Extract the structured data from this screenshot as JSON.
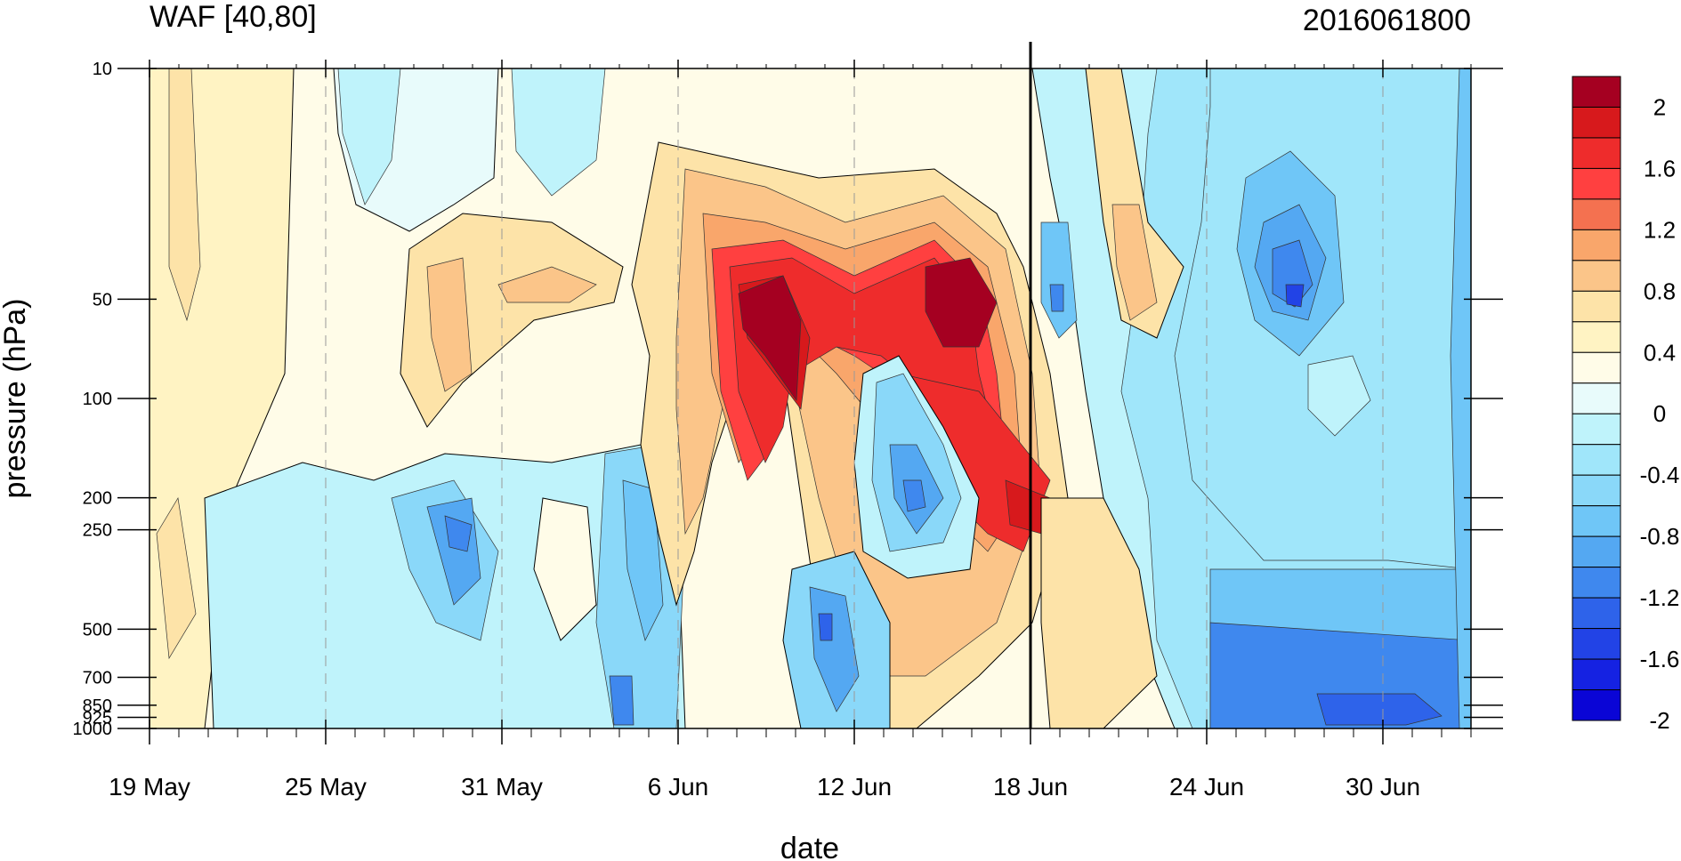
{
  "chart_data": {
    "type": "heatmap",
    "title": "WAF [40,80]",
    "timestamp": "2016061800",
    "xlabel": "date",
    "ylabel": "pressure (hPa)",
    "x_ticks": [
      "19 May",
      "25 May",
      "31 May",
      "6 Jun",
      "12 Jun",
      "18 Jun",
      "24 Jun",
      "30 Jun"
    ],
    "x_tick_days": [
      0,
      6,
      12,
      18,
      24,
      30,
      36,
      42
    ],
    "x_range_days": [
      0,
      45
    ],
    "marker_day": 30,
    "y_ticks": [
      "10",
      "50",
      "100",
      "200",
      "250",
      "500",
      "700",
      "850",
      "925",
      "1000"
    ],
    "y_tick_values": [
      10,
      50,
      100,
      200,
      250,
      500,
      700,
      850,
      925,
      1000
    ],
    "y_range": [
      10,
      1000
    ],
    "y_scale": "log-like",
    "colorbar": {
      "min": -2.2,
      "max": 2.2,
      "interval": 0.2,
      "labels": [
        "2",
        "1.6",
        "1.2",
        "0.8",
        "0.4",
        "0",
        "-0.4",
        "-0.8",
        "-1.2",
        "-1.6",
        "-2"
      ],
      "colors": [
        "#a50021",
        "#d7191c",
        "#ee2c2c",
        "#ff4040",
        "#f47150",
        "#f9a66b",
        "#fbc589",
        "#fde3a8",
        "#fff3c3",
        "#fffce8",
        "#e8fbfb",
        "#bff3fb",
        "#a0e6fa",
        "#8ad8f9",
        "#6fc6f7",
        "#54a8f2",
        "#3f88ee",
        "#2e63ea",
        "#2243e6",
        "#1522e2",
        "#0a05d6"
      ]
    },
    "features": [
      {
        "label": "positive max",
        "day": 23.5,
        "pressure": 55,
        "value": 2.2
      },
      {
        "label": "positive max",
        "day": 28.5,
        "pressure": 52,
        "value": 2.2
      },
      {
        "label": "negative min",
        "day": 39.5,
        "pressure": 50,
        "value": -1.6
      },
      {
        "label": "negative min",
        "day": 18.0,
        "pressure": 250,
        "value": -1.0
      },
      {
        "label": "negative min",
        "day": 27.5,
        "pressure": 200,
        "value": -1.2
      }
    ]
  }
}
